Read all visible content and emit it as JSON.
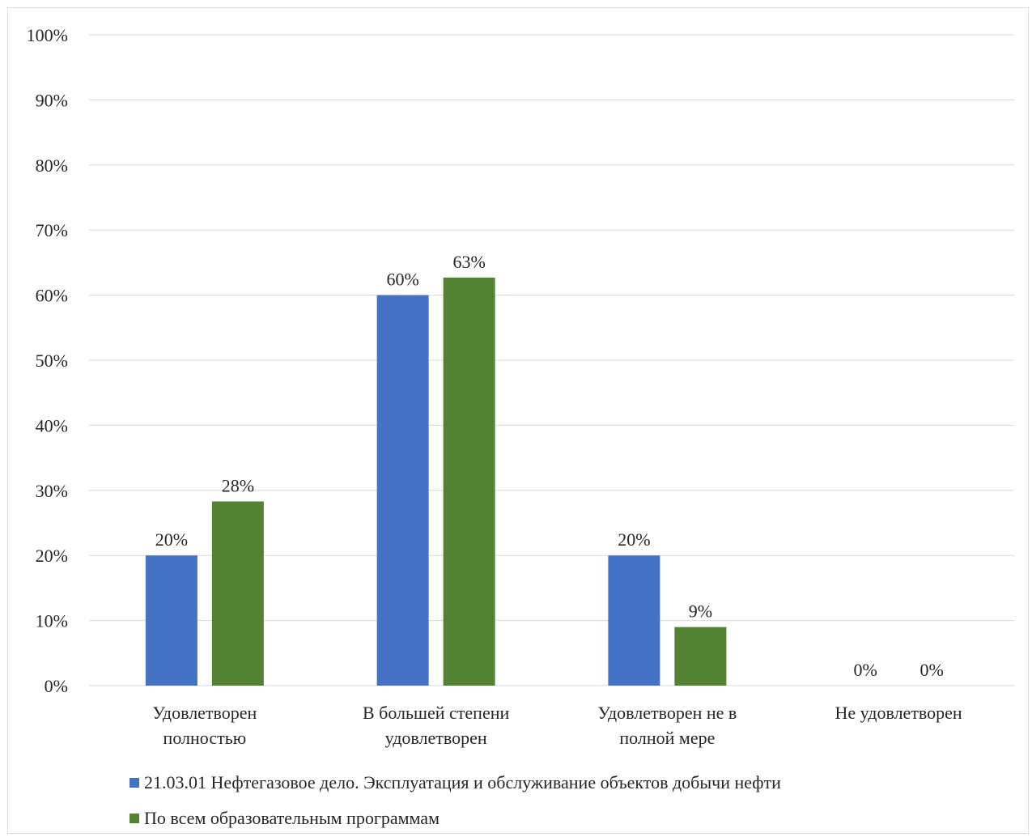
{
  "chart_data": {
    "type": "bar",
    "categories": [
      [
        "Удовлетворен",
        "полностью"
      ],
      [
        "В большей степени",
        "удовлетворен"
      ],
      [
        "Удовлетворен не в",
        "полной мере"
      ],
      [
        "Не удовлетворен"
      ]
    ],
    "series": [
      {
        "name": "21.03.01 Нефтегазовое дело. Эксплуатация и обслуживание объектов добычи нефти",
        "color": "#4472c4",
        "values": [
          20,
          60,
          20,
          0
        ],
        "labels": [
          "20%",
          "60%",
          "20%",
          "0%"
        ]
      },
      {
        "name": "По всем образовательным программам",
        "color": "#548235",
        "values": [
          28.3,
          62.7,
          9,
          0
        ],
        "labels": [
          "28%",
          "63%",
          "9%",
          "0%"
        ]
      }
    ],
    "ylim": [
      0,
      100
    ],
    "yticks": [
      "0%",
      "10%",
      "20%",
      "30%",
      "40%",
      "50%",
      "60%",
      "70%",
      "80%",
      "90%",
      "100%"
    ],
    "grid": true,
    "legend_position": "bottom"
  }
}
